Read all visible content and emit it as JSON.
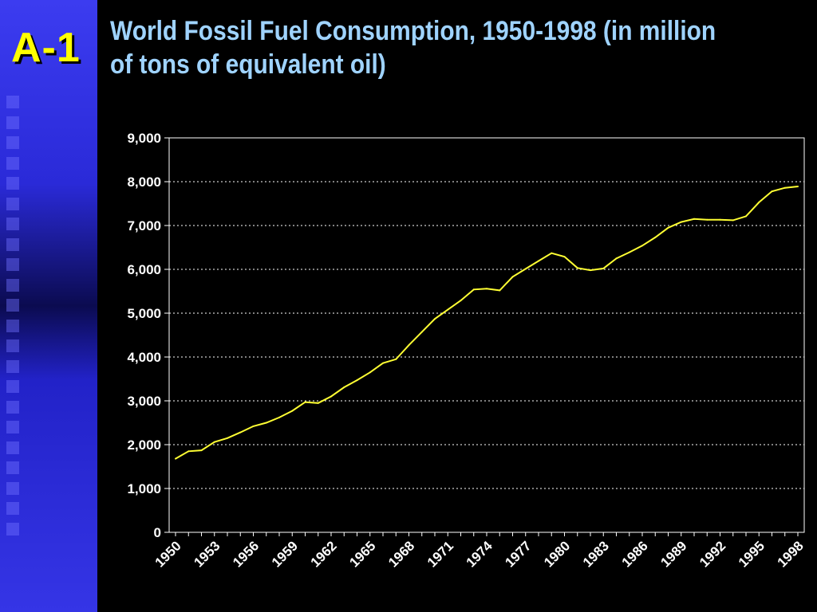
{
  "slide": {
    "badge": "A-1",
    "title": "World Fossil Fuel Consumption, 1950-1998 (in million of tons of equivalent oil)"
  },
  "colors": {
    "background": "#000000",
    "line": "#ffff33",
    "title": "#9fd3ff",
    "badge": "#ffff00",
    "sidebar": "#3333e0"
  },
  "chart_data": {
    "type": "line",
    "title": "",
    "xlabel": "",
    "ylabel": "",
    "ylim": [
      0,
      9000
    ],
    "yticks": [
      "0",
      "1,000",
      "2,000",
      "3,000",
      "4,000",
      "5,000",
      "6,000",
      "7,000",
      "8,000",
      "9,000"
    ],
    "xticks": [
      "1950",
      "1953",
      "1956",
      "1959",
      "1962",
      "1965",
      "1968",
      "1971",
      "1974",
      "1977",
      "1980",
      "1983",
      "1986",
      "1989",
      "1992",
      "1995",
      "1998"
    ],
    "grid": "horizontal dotted",
    "x": [
      1950,
      1951,
      1952,
      1953,
      1954,
      1955,
      1956,
      1957,
      1958,
      1959,
      1960,
      1961,
      1962,
      1963,
      1964,
      1965,
      1966,
      1967,
      1968,
      1969,
      1970,
      1971,
      1972,
      1973,
      1974,
      1975,
      1976,
      1977,
      1978,
      1979,
      1980,
      1981,
      1982,
      1983,
      1984,
      1985,
      1986,
      1987,
      1988,
      1989,
      1990,
      1991,
      1992,
      1993,
      1994,
      1995,
      1996,
      1997,
      1998
    ],
    "series": [
      {
        "values": [
          1680,
          1850,
          1870,
          2060,
          2150,
          2280,
          2420,
          2500,
          2620,
          2770,
          2970,
          2950,
          3100,
          3310,
          3470,
          3650,
          3860,
          3950,
          4270,
          4570,
          4870,
          5080,
          5290,
          5540,
          5560,
          5520,
          5830,
          6010,
          6190,
          6370,
          6290,
          6030,
          5980,
          6020,
          6250,
          6390,
          6540,
          6730,
          6950,
          7080,
          7150,
          7130,
          7130,
          7120,
          7210,
          7530,
          7780,
          7860,
          7890
        ]
      }
    ]
  }
}
